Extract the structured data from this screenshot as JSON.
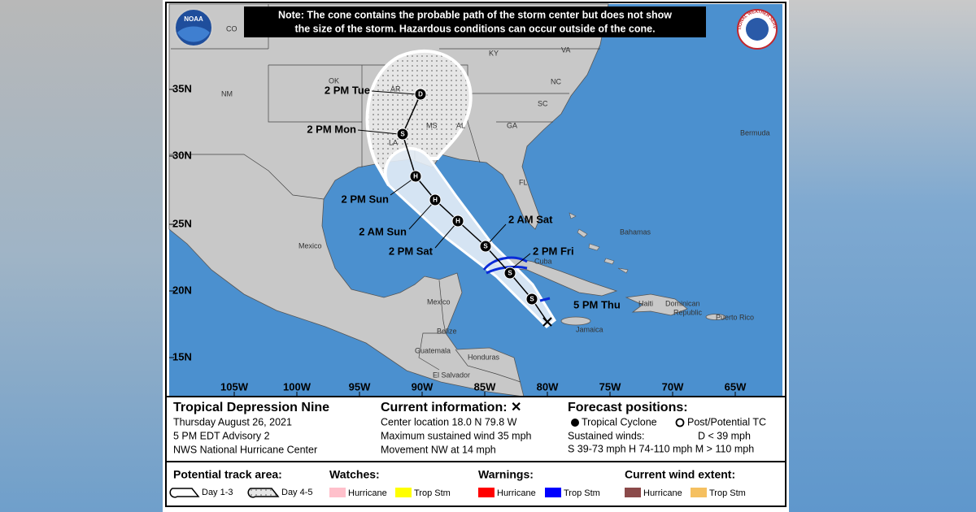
{
  "note": [
    "Note: The cone contains the probable path of the storm center but does not show",
    "the size of the storm. Hazardous conditions can occur outside of the cone."
  ],
  "logos": {
    "noaa": "NOAA",
    "nws": "NATIONAL WEATHER SERVICE"
  },
  "map": {
    "lat_labels": [
      "35N",
      "30N",
      "25N",
      "20N",
      "15N"
    ],
    "lon_labels": [
      "105W",
      "100W",
      "95W",
      "90W",
      "85W",
      "80W",
      "75W",
      "70W",
      "65W"
    ],
    "places": [
      "CO",
      "KY",
      "VA",
      "OK",
      "NM",
      "AR",
      "NC",
      "SC",
      "MS",
      "AL",
      "GA",
      "LA",
      "FL",
      "Bermuda",
      "Mexico",
      "Mexico",
      "Bahamas",
      "Cuba",
      "Jamaica",
      "Haiti",
      "Dominican",
      "Republic",
      "Puerto Rico",
      "Belize",
      "Guatemala",
      "Honduras",
      "El Salvador"
    ],
    "forecast_points": [
      {
        "time": "5 PM Thu",
        "symbol": "X"
      },
      {
        "time": null,
        "symbol": "S"
      },
      {
        "time": "2 PM Fri",
        "symbol": "S"
      },
      {
        "time": "2 AM Sat",
        "symbol": "S"
      },
      {
        "time": "2 PM Sat",
        "symbol": "H"
      },
      {
        "time": "2 AM Sun",
        "symbol": "H"
      },
      {
        "time": "2 PM Sun",
        "symbol": "H"
      },
      {
        "time": "2 PM Mon",
        "symbol": "S"
      },
      {
        "time": "2 PM Tue",
        "symbol": "D"
      }
    ]
  },
  "info": {
    "storm": [
      "Tropical Depression Nine",
      "Thursday August 26, 2021",
      "5 PM EDT Advisory 2",
      "NWS National Hurricane Center"
    ],
    "current": [
      "Current information: ✕",
      "Center location 18.0 N 79.8 W",
      "Maximum sustained wind 35 mph",
      "Movement NW at 14 mph"
    ],
    "forecast": [
      "Forecast positions:",
      "Tropical Cyclone",
      "Post/Potential TC",
      "Sustained winds:",
      "D < 39 mph",
      "S 39-73 mph  H 74-110 mph  M > 110 mph"
    ]
  },
  "legend": {
    "track": {
      "title": "Potential track area:",
      "items": [
        "Day 1-3",
        "Day 4-5"
      ]
    },
    "watches": {
      "title": "Watches:",
      "items": [
        {
          "label": "Hurricane",
          "color": "#ffc0cb"
        },
        {
          "label": "Trop Stm",
          "color": "#ffff00"
        }
      ]
    },
    "warnings": {
      "title": "Warnings:",
      "items": [
        {
          "label": "Hurricane",
          "color": "#ff0000"
        },
        {
          "label": "Trop Stm",
          "color": "#0000ff"
        }
      ]
    },
    "wind": {
      "title": "Current wind extent:",
      "items": [
        {
          "label": "Hurricane",
          "color": "#8b4a4a"
        },
        {
          "label": "Trop Stm",
          "color": "#f5c060"
        }
      ]
    }
  }
}
